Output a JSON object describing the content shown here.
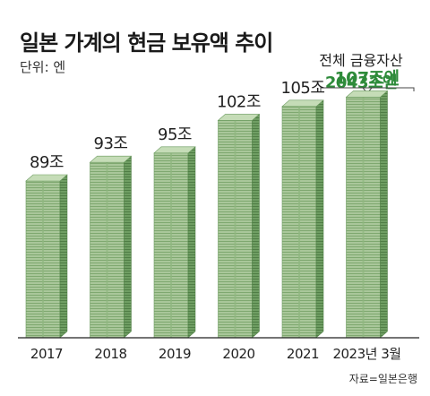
{
  "title": "일본 가계의 현금 보유액 추이",
  "unit_label": "단위: 엔",
  "total_assets": {
    "label": "전체 금융자산",
    "value": "2043조엔"
  },
  "source": "자료=일본은행",
  "colors": {
    "accent": "#2e8b3a",
    "bill_face": "#a9c79a",
    "bill_side": "#6f9e63",
    "bill_top": "#c5dcb7"
  },
  "chart_data": {
    "type": "bar",
    "title": "일본 가계의 현금 보유액 추이",
    "ylabel": "",
    "xlabel": "",
    "unit": "조엔",
    "categories": [
      "2017",
      "2018",
      "2019",
      "2020",
      "2021",
      "2023년 3월"
    ],
    "values": [
      89,
      93,
      95,
      102,
      105,
      107
    ],
    "value_labels": [
      "89조",
      "93조",
      "95조",
      "102조",
      "105조",
      "107조엔"
    ],
    "highlight_index": 5,
    "grid": false
  }
}
